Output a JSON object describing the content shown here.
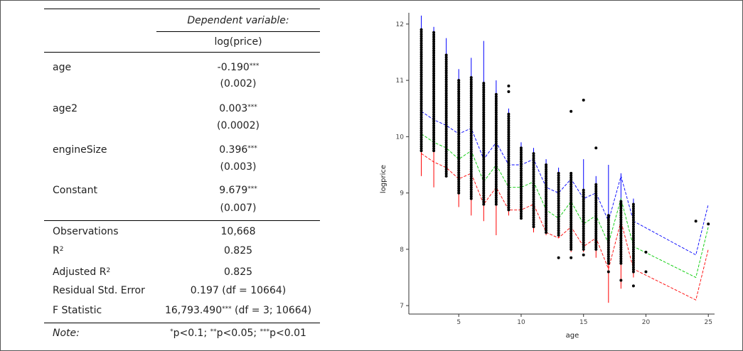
{
  "table": {
    "header_dep": "Dependent variable:",
    "header_model": "log(price)",
    "rows": [
      {
        "label": "age",
        "coef": "-0.190",
        "stars": "***",
        "se": "(0.002)"
      },
      {
        "label": "age2",
        "coef": "0.003",
        "stars": "***",
        "se": "(0.0002)"
      },
      {
        "label": "engineSize",
        "coef": "0.396",
        "stars": "***",
        "se": "(0.003)"
      },
      {
        "label": "Constant",
        "coef": "9.679",
        "stars": "***",
        "se": "(0.007)"
      }
    ],
    "stats": {
      "observations_label": "Observations",
      "observations_value": "10,668",
      "r2_label": "R",
      "r2_sup": "2",
      "r2_value": "0.825",
      "adj_r2_label": "Adjusted R",
      "adj_r2_sup": "2",
      "adj_r2_value": "0.825",
      "rse_label": "Residual Std. Error",
      "rse_value": "0.197 (df = 10664)",
      "f_label": "F Statistic",
      "f_value": "16,793.490",
      "f_stars": "***",
      "f_df": " (df = 3; 10664)"
    },
    "note": {
      "label": "Note:",
      "s1": "*",
      "t1": "p<0.1; ",
      "s2": "**",
      "t2": "p<0.05; ",
      "s3": "***",
      "t3": "p<0.01"
    }
  },
  "chart_data": {
    "type": "scatter",
    "title": "",
    "xlabel": "age",
    "ylabel": "logprice",
    "xlim": [
      1,
      25.5
    ],
    "ylim": [
      6.85,
      12.2
    ],
    "xticks": [
      5,
      10,
      15,
      20,
      25
    ],
    "yticks": [
      7,
      8,
      9,
      10,
      11,
      12
    ],
    "grid": false,
    "point_color": "#000000",
    "point_columns": [
      {
        "x": 2,
        "min": 9.75,
        "max": 11.9
      },
      {
        "x": 3,
        "min": 9.75,
        "max": 11.85
      },
      {
        "x": 4,
        "min": 9.3,
        "max": 11.45
      },
      {
        "x": 5,
        "min": 9.0,
        "max": 11.0
      },
      {
        "x": 6,
        "min": 8.9,
        "max": 11.05
      },
      {
        "x": 7,
        "min": 8.8,
        "max": 10.95
      },
      {
        "x": 8,
        "min": 8.8,
        "max": 10.75
      },
      {
        "x": 9,
        "min": 8.7,
        "max": 10.4
      },
      {
        "x": 10,
        "min": 8.55,
        "max": 9.8
      },
      {
        "x": 11,
        "min": 8.4,
        "max": 9.7
      },
      {
        "x": 12,
        "min": 8.3,
        "max": 9.5
      },
      {
        "x": 13,
        "min": 8.25,
        "max": 9.35
      },
      {
        "x": 14,
        "min": 8.0,
        "max": 9.35
      },
      {
        "x": 15,
        "min": 8.0,
        "max": 9.05
      },
      {
        "x": 16,
        "min": 8.0,
        "max": 9.15
      },
      {
        "x": 17,
        "min": 7.75,
        "max": 8.6
      },
      {
        "x": 18,
        "min": 7.75,
        "max": 8.85
      },
      {
        "x": 19,
        "min": 7.6,
        "max": 8.8
      }
    ],
    "extra_points": [
      {
        "x": 9,
        "y": 10.9
      },
      {
        "x": 9,
        "y": 10.8
      },
      {
        "x": 14,
        "y": 10.45
      },
      {
        "x": 15,
        "y": 10.65
      },
      {
        "x": 16,
        "y": 9.8
      },
      {
        "x": 13,
        "y": 7.85
      },
      {
        "x": 14,
        "y": 7.85
      },
      {
        "x": 15,
        "y": 7.9
      },
      {
        "x": 17,
        "y": 7.6
      },
      {
        "x": 18,
        "y": 7.45
      },
      {
        "x": 19,
        "y": 7.35
      },
      {
        "x": 20,
        "y": 7.95
      },
      {
        "x": 20,
        "y": 7.6
      },
      {
        "x": 24,
        "y": 8.5
      },
      {
        "x": 25,
        "y": 8.45
      }
    ],
    "series": [
      {
        "color": "#0000ff",
        "x": [
          2,
          3,
          4,
          5,
          6,
          7,
          8,
          9,
          10,
          11,
          12,
          13,
          14,
          15,
          16,
          17,
          18,
          19,
          24,
          25
        ],
        "y": [
          10.45,
          10.3,
          10.2,
          10.05,
          10.15,
          9.6,
          9.9,
          9.5,
          9.5,
          9.6,
          9.1,
          9.0,
          9.25,
          8.9,
          9.0,
          8.5,
          9.3,
          8.5,
          7.9,
          8.8
        ]
      },
      {
        "color": "#00cc00",
        "x": [
          2,
          3,
          4,
          5,
          6,
          7,
          8,
          9,
          10,
          11,
          12,
          13,
          14,
          15,
          16,
          17,
          18,
          19,
          24,
          25
        ],
        "y": [
          10.05,
          9.9,
          9.8,
          9.6,
          9.75,
          9.2,
          9.5,
          9.1,
          9.1,
          9.2,
          8.7,
          8.55,
          8.85,
          8.45,
          8.6,
          8.1,
          8.9,
          8.05,
          7.5,
          8.4
        ]
      },
      {
        "color": "#ff0000",
        "x": [
          2,
          3,
          4,
          5,
          6,
          7,
          8,
          9,
          10,
          11,
          12,
          13,
          14,
          15,
          16,
          17,
          18,
          19,
          24,
          25
        ],
        "y": [
          9.7,
          9.55,
          9.45,
          9.25,
          9.35,
          8.8,
          9.1,
          8.7,
          8.7,
          8.8,
          8.3,
          8.2,
          8.4,
          8.05,
          8.2,
          7.65,
          8.5,
          7.65,
          7.1,
          8.0
        ]
      }
    ],
    "error_bars": [
      {
        "x": 2,
        "blue_top": 12.15,
        "red_bottom": 9.3
      },
      {
        "x": 3,
        "blue_top": 11.95,
        "red_bottom": 9.1
      },
      {
        "x": 4,
        "blue_top": 11.75,
        "red_bottom": 9.35
      },
      {
        "x": 5,
        "blue_top": 11.2,
        "red_bottom": 8.75
      },
      {
        "x": 6,
        "blue_top": 11.4,
        "red_bottom": 8.6
      },
      {
        "x": 7,
        "blue_top": 11.7,
        "red_bottom": 8.5
      },
      {
        "x": 8,
        "blue_top": 11.0,
        "red_bottom": 8.25
      },
      {
        "x": 9,
        "blue_top": 10.5,
        "red_bottom": 8.6
      },
      {
        "x": 10,
        "blue_top": 9.9,
        "red_bottom": 8.55
      },
      {
        "x": 11,
        "blue_top": 9.8,
        "red_bottom": 8.3
      },
      {
        "x": 12,
        "blue_top": 9.6,
        "red_bottom": 8.25
      },
      {
        "x": 13,
        "blue_top": 9.45,
        "red_bottom": 8.2
      },
      {
        "x": 14,
        "blue_top": 9.35,
        "red_bottom": 7.95
      },
      {
        "x": 15,
        "blue_top": 9.6,
        "red_bottom": 7.95
      },
      {
        "x": 16,
        "blue_top": 9.3,
        "red_bottom": 7.85
      },
      {
        "x": 17,
        "blue_top": 9.5,
        "red_bottom": 7.05
      },
      {
        "x": 18,
        "blue_top": 9.35,
        "red_bottom": 7.3
      },
      {
        "x": 19,
        "blue_top": 8.9,
        "red_bottom": 7.5
      }
    ]
  }
}
